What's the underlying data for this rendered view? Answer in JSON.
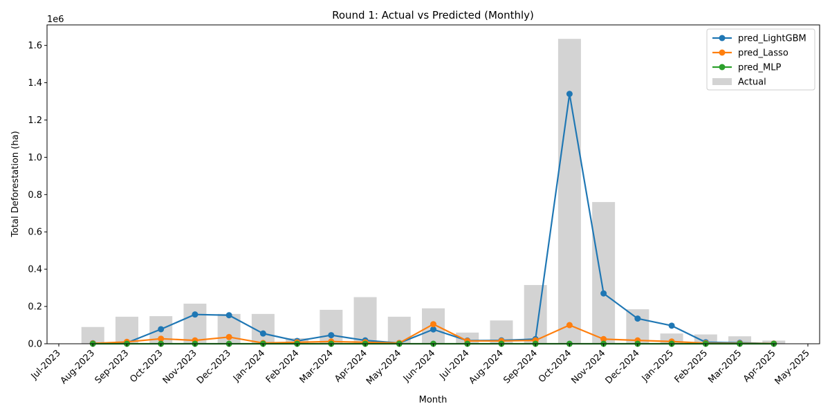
{
  "chart_data": {
    "type": "bar+line",
    "title": "Round 1: Actual vs Predicted (Monthly)",
    "xlabel": "Month",
    "ylabel": "Total Deforestation (ha)",
    "y_scale_label": "1e6",
    "ylim": [
      0,
      1.71
    ],
    "y_ticks": [
      "0.0",
      "0.2",
      "0.4",
      "0.6",
      "0.8",
      "1.0",
      "1.2",
      "1.4",
      "1.6"
    ],
    "x_tick_labels": [
      "Jul-2023",
      "Aug-2023",
      "Sep-2023",
      "Oct-2023",
      "Nov-2023",
      "Dec-2023",
      "Jan-2024",
      "Feb-2024",
      "Mar-2024",
      "Apr-2024",
      "May-2024",
      "Jun-2024",
      "Jul-2024",
      "Aug-2024",
      "Sep-2024",
      "Oct-2024",
      "Nov-2024",
      "Dec-2024",
      "Jan-2025",
      "Feb-2025",
      "Mar-2025",
      "Apr-2025",
      "May-2025"
    ],
    "categories": [
      "Aug-2023",
      "Sep-2023",
      "Oct-2023",
      "Nov-2023",
      "Dec-2023",
      "Jan-2024",
      "Feb-2024",
      "Mar-2024",
      "Apr-2024",
      "May-2024",
      "Jun-2024",
      "Jul-2024",
      "Aug-2024",
      "Sep-2024",
      "Oct-2024",
      "Nov-2024",
      "Dec-2024",
      "Jan-2025",
      "Feb-2025",
      "Mar-2025",
      "Apr-2025"
    ],
    "actual": {
      "name": "Actual",
      "color": "#d3d3d3",
      "values": [
        0.09,
        0.145,
        0.148,
        0.215,
        0.16,
        0.16,
        0.03,
        0.182,
        0.25,
        0.145,
        0.19,
        0.06,
        0.125,
        0.315,
        1.635,
        0.76,
        0.185,
        0.055,
        0.05,
        0.04,
        0.017
      ]
    },
    "series": [
      {
        "name": "pred_LightGBM",
        "color": "#1f77b4",
        "values": [
          0.003,
          0.005,
          0.078,
          0.157,
          0.153,
          0.055,
          0.015,
          0.046,
          0.018,
          0.004,
          0.077,
          0.017,
          0.018,
          0.025,
          1.34,
          0.27,
          0.135,
          0.097,
          0.008,
          0.005,
          0.001
        ]
      },
      {
        "name": "pred_Lasso",
        "color": "#ff7f0e",
        "values": [
          0.002,
          0.01,
          0.027,
          0.018,
          0.036,
          0.004,
          0.008,
          0.012,
          0.008,
          0.004,
          0.105,
          0.015,
          0.015,
          0.018,
          0.1,
          0.025,
          0.018,
          0.012,
          0.003,
          0.002,
          0.001
        ]
      },
      {
        "name": "pred_MLP",
        "color": "#2ca02c",
        "values": [
          0.0,
          0.0,
          0.0,
          0.0,
          0.0,
          0.0,
          0.0,
          0.0,
          0.0,
          0.0,
          0.0,
          0.0,
          0.0,
          0.0,
          0.0,
          0.0,
          0.0,
          0.0,
          0.0,
          0.0,
          0.0
        ]
      }
    ],
    "legend_position": "top-right"
  }
}
